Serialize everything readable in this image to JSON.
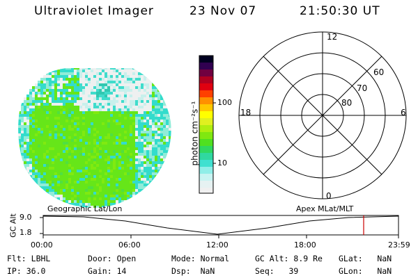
{
  "header": {
    "instrument": "Ultraviolet Imager",
    "date": "23 Nov 07",
    "time": "21:50:30 UT"
  },
  "colorbar": {
    "label": "photon cm⁻²s⁻¹",
    "ticks": [
      "100",
      "10"
    ]
  },
  "polar_plot": {
    "labels": {
      "top": "12",
      "left": "18",
      "right": "6",
      "bottom": "0",
      "lat60": "60",
      "lat70": "70",
      "lat80": "80"
    }
  },
  "timeline": {
    "left_title": "Geographic Lat/Lon",
    "right_title": "Apex MLat/MLT",
    "y_label": "GC Alt",
    "y_ticks": [
      "9.0",
      "1.8"
    ],
    "x_ticks": [
      "00:00",
      "06:00",
      "12:00",
      "18:00",
      "23:59"
    ]
  },
  "status": {
    "row1": [
      {
        "key": "Flt:",
        "value": "LBHL"
      },
      {
        "key": "Door:",
        "value": "Open"
      },
      {
        "key": "Mode:",
        "value": "Normal"
      },
      {
        "key": "GC Alt:",
        "value": "8.9 Re"
      },
      {
        "key": "GLat:",
        "value": "NaN"
      }
    ],
    "row2": [
      {
        "key": "IP:",
        "value": "36.0"
      },
      {
        "key": "Gain:",
        "value": "14"
      },
      {
        "key": "Dsp:",
        "value": "NaN"
      },
      {
        "key": "Seq:",
        "value": "39"
      },
      {
        "key": "GLon:",
        "value": "NaN"
      }
    ]
  },
  "colors": {
    "background": "#ffffff",
    "marker": "#cc0000",
    "aurora_green": "#66e619",
    "aurora_cyan": "#33dccc"
  }
}
